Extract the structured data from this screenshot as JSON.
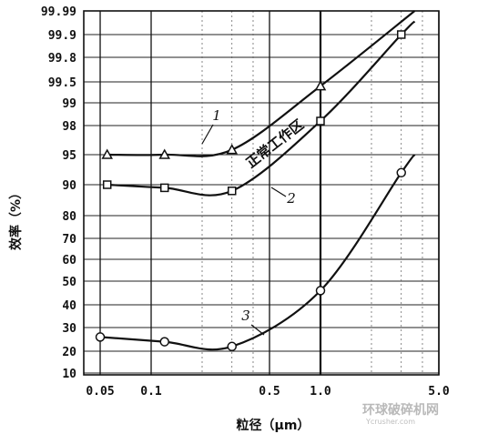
{
  "chart_data": {
    "type": "line",
    "xlabel": "粒径（μm）",
    "ylabel": "效率（%）",
    "x_scale": "log",
    "y_scale": "probability",
    "xlim": [
      0.04,
      5.0
    ],
    "x_ticks": [
      {
        "value": 0.05,
        "label": "0.05"
      },
      {
        "value": 0.1,
        "label": "0.1"
      },
      {
        "value": 0.5,
        "label": "0.5"
      },
      {
        "value": 1.0,
        "label": "1.0"
      },
      {
        "value": 5.0,
        "label": "5.0"
      }
    ],
    "y_ticks": [
      {
        "value": 99.99,
        "label": "99.99"
      },
      {
        "value": 99.9,
        "label": "99.9"
      },
      {
        "value": 99.8,
        "label": "99.8"
      },
      {
        "value": 99.5,
        "label": "99.5"
      },
      {
        "value": 99,
        "label": "99"
      },
      {
        "value": 98,
        "label": "98"
      },
      {
        "value": 95,
        "label": "95"
      },
      {
        "value": 90,
        "label": "90"
      },
      {
        "value": 80,
        "label": "80"
      },
      {
        "value": 70,
        "label": "70"
      },
      {
        "value": 60,
        "label": "60"
      },
      {
        "value": 50,
        "label": "50"
      },
      {
        "value": 40,
        "label": "40"
      },
      {
        "value": 30,
        "label": "30"
      },
      {
        "value": 20,
        "label": "20"
      },
      {
        "value": 10,
        "label": "10"
      }
    ],
    "series": [
      {
        "name": "1",
        "marker": "triangle",
        "points": [
          [
            0.055,
            95
          ],
          [
            0.12,
            95
          ],
          [
            0.3,
            95.5
          ],
          [
            1.0,
            99.4
          ]
        ],
        "curve_end": [
          3.6,
          99.99
        ]
      },
      {
        "name": "2",
        "marker": "square",
        "points": [
          [
            0.055,
            90
          ],
          [
            0.12,
            89
          ],
          [
            0.3,
            88
          ],
          [
            1.0,
            98.2
          ],
          [
            3.0,
            99.9
          ]
        ],
        "curve_end": [
          3.6,
          99.95
        ]
      },
      {
        "name": "3",
        "marker": "circle",
        "points": [
          [
            0.05,
            26
          ],
          [
            0.12,
            24
          ],
          [
            0.3,
            22
          ],
          [
            1.0,
            46
          ],
          [
            3.0,
            92
          ]
        ],
        "curve_end": [
          3.6,
          95
        ]
      }
    ],
    "annotations": [
      "1",
      "2",
      "3",
      "正常工作区"
    ],
    "grid": true
  },
  "watermark": {
    "text": "环球破碎机网",
    "url": "Ycrusher.com"
  }
}
